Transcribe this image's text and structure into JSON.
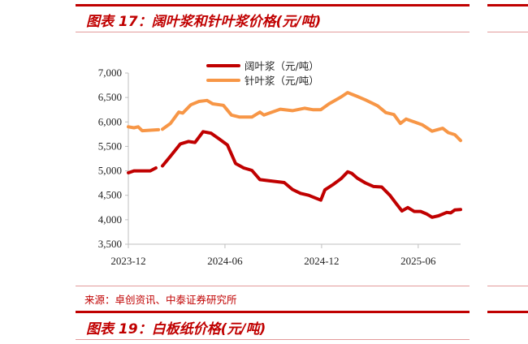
{
  "figure_top": {
    "title": "图表 17：阔叶浆和针叶浆价格(元/吨)"
  },
  "source": "来源：卓创资讯、中泰证券研究所",
  "figure_next": {
    "title": "图表 19：白板纸价格(元/吨)"
  },
  "colors": {
    "accent": "#c00000",
    "hardwood": "#c00000",
    "softwood": "#f79646"
  },
  "chart_data": {
    "type": "line",
    "title": "图表 17：阔叶浆和针叶浆价格(元/吨)",
    "xlabel": "",
    "ylabel": "",
    "x_unit": "months since 2023-12",
    "xlim": [
      0,
      20.63
    ],
    "ylim": [
      3500,
      7000
    ],
    "yticks": [
      "3,500",
      "4,000",
      "4,500",
      "5,000",
      "5,500",
      "6,000",
      "6,500",
      "7,000"
    ],
    "ytick_values": [
      3500,
      4000,
      4500,
      5000,
      5500,
      6000,
      6500,
      7000
    ],
    "xticks": [
      "2023-12",
      "2024-06",
      "2024-12",
      "2025-06"
    ],
    "xtick_values": [
      0,
      6,
      12,
      18
    ],
    "grid": false,
    "legend_position": "top-center",
    "series": [
      {
        "name": "阔叶浆（元/吨）",
        "color": "#c00000",
        "points": [
          [
            0,
            4960
          ],
          [
            0.35,
            5000
          ],
          [
            1.36,
            5000
          ],
          [
            1.71,
            5060
          ],
          null,
          [
            2.12,
            5100
          ],
          [
            2.62,
            5300
          ],
          [
            3.23,
            5550
          ],
          [
            3.73,
            5600
          ],
          [
            4.14,
            5580
          ],
          [
            4.64,
            5800
          ],
          [
            5.14,
            5770
          ],
          [
            5.65,
            5650
          ],
          [
            6.15,
            5530
          ],
          [
            6.66,
            5150
          ],
          [
            7.16,
            5060
          ],
          [
            7.67,
            5010
          ],
          [
            8.17,
            4820
          ],
          [
            8.67,
            4800
          ],
          [
            9.68,
            4760
          ],
          [
            10.19,
            4620
          ],
          [
            10.69,
            4540
          ],
          [
            11.2,
            4500
          ],
          [
            11.95,
            4400
          ],
          [
            12.2,
            4610
          ],
          [
            12.71,
            4720
          ],
          [
            13.21,
            4840
          ],
          [
            13.62,
            4980
          ],
          [
            13.87,
            4950
          ],
          [
            14.22,
            4850
          ],
          [
            14.73,
            4750
          ],
          [
            15.23,
            4680
          ],
          [
            15.73,
            4670
          ],
          [
            16.24,
            4500
          ],
          [
            16.59,
            4350
          ],
          [
            16.99,
            4180
          ],
          [
            17.35,
            4250
          ],
          [
            17.75,
            4170
          ],
          [
            18.15,
            4170
          ],
          [
            18.51,
            4120
          ],
          [
            18.86,
            4050
          ],
          [
            19.26,
            4080
          ],
          [
            19.77,
            4150
          ],
          [
            20.02,
            4140
          ],
          [
            20.27,
            4200
          ],
          [
            20.63,
            4210
          ]
        ]
      },
      {
        "name": "针叶浆（元/吨）",
        "color": "#f79646",
        "points": [
          [
            0,
            5900
          ],
          [
            0.35,
            5880
          ],
          [
            0.61,
            5900
          ],
          [
            0.86,
            5820
          ],
          [
            1.87,
            5840
          ],
          null,
          [
            2.12,
            5850
          ],
          [
            2.62,
            5970
          ],
          [
            3.13,
            6200
          ],
          [
            3.38,
            6180
          ],
          [
            3.88,
            6350
          ],
          [
            4.39,
            6420
          ],
          [
            4.89,
            6440
          ],
          [
            5.24,
            6370
          ],
          [
            5.9,
            6340
          ],
          [
            6.4,
            6140
          ],
          [
            6.91,
            6100
          ],
          [
            7.67,
            6100
          ],
          [
            8.17,
            6200
          ],
          [
            8.42,
            6140
          ],
          [
            9.43,
            6260
          ],
          [
            10.19,
            6230
          ],
          [
            10.94,
            6280
          ],
          [
            11.45,
            6250
          ],
          [
            11.95,
            6250
          ],
          [
            12.46,
            6370
          ],
          [
            13.21,
            6510
          ],
          [
            13.62,
            6600
          ],
          [
            14.22,
            6520
          ],
          [
            14.73,
            6450
          ],
          [
            15.48,
            6330
          ],
          [
            15.99,
            6190
          ],
          [
            16.49,
            6150
          ],
          [
            16.89,
            5970
          ],
          [
            17.25,
            6060
          ],
          [
            17.75,
            6000
          ],
          [
            18.26,
            5940
          ],
          [
            18.86,
            5810
          ],
          [
            19.52,
            5870
          ],
          [
            19.87,
            5780
          ],
          [
            20.27,
            5740
          ],
          [
            20.63,
            5620
          ]
        ]
      }
    ]
  }
}
